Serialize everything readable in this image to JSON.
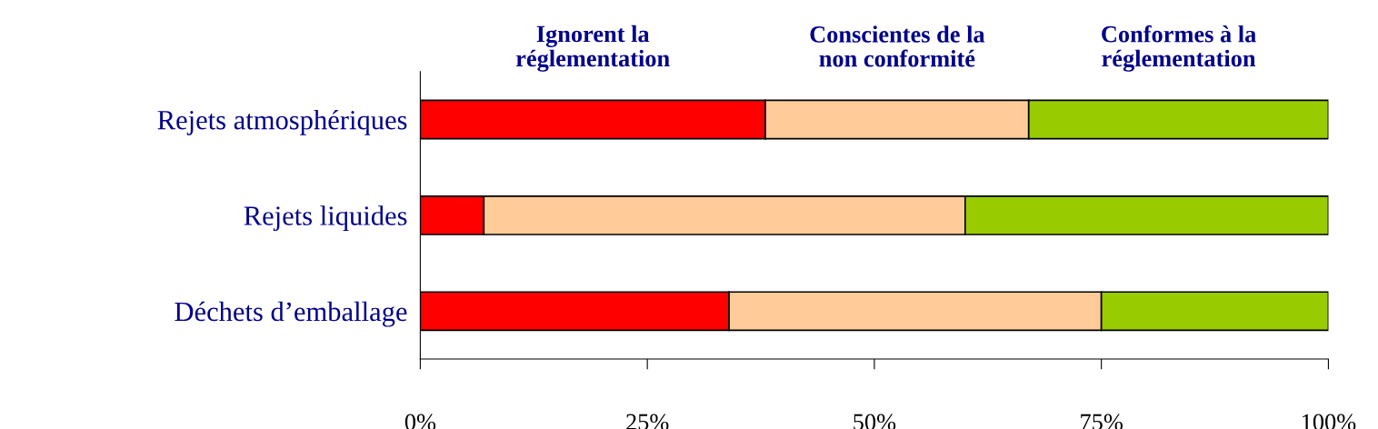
{
  "chart_data": {
    "type": "bar",
    "orientation": "horizontal",
    "stacked": true,
    "legend": "top",
    "grid": false,
    "categories": [
      "Rejets atmosphériques",
      "Rejets liquides",
      "Déchets d’emballage"
    ],
    "series": [
      {
        "name": "Ignorent la\nréglementation",
        "color": "#ff0000",
        "values": [
          38,
          7,
          34
        ]
      },
      {
        "name": "Conscientes de la\nnon conformité",
        "color": "#ffcc99",
        "values": [
          29,
          53,
          41
        ]
      },
      {
        "name": "Conformes à la\nréglementation",
        "color": "#99cc00",
        "values": [
          33,
          40,
          25
        ]
      }
    ],
    "xlim": [
      0,
      100
    ],
    "xticks": [
      {
        "value": 0,
        "label": "0%"
      },
      {
        "value": 25,
        "label": "25%"
      },
      {
        "value": 50,
        "label": "50%"
      },
      {
        "value": 75,
        "label": "75%"
      },
      {
        "value": 100,
        "label": "100%"
      }
    ]
  }
}
